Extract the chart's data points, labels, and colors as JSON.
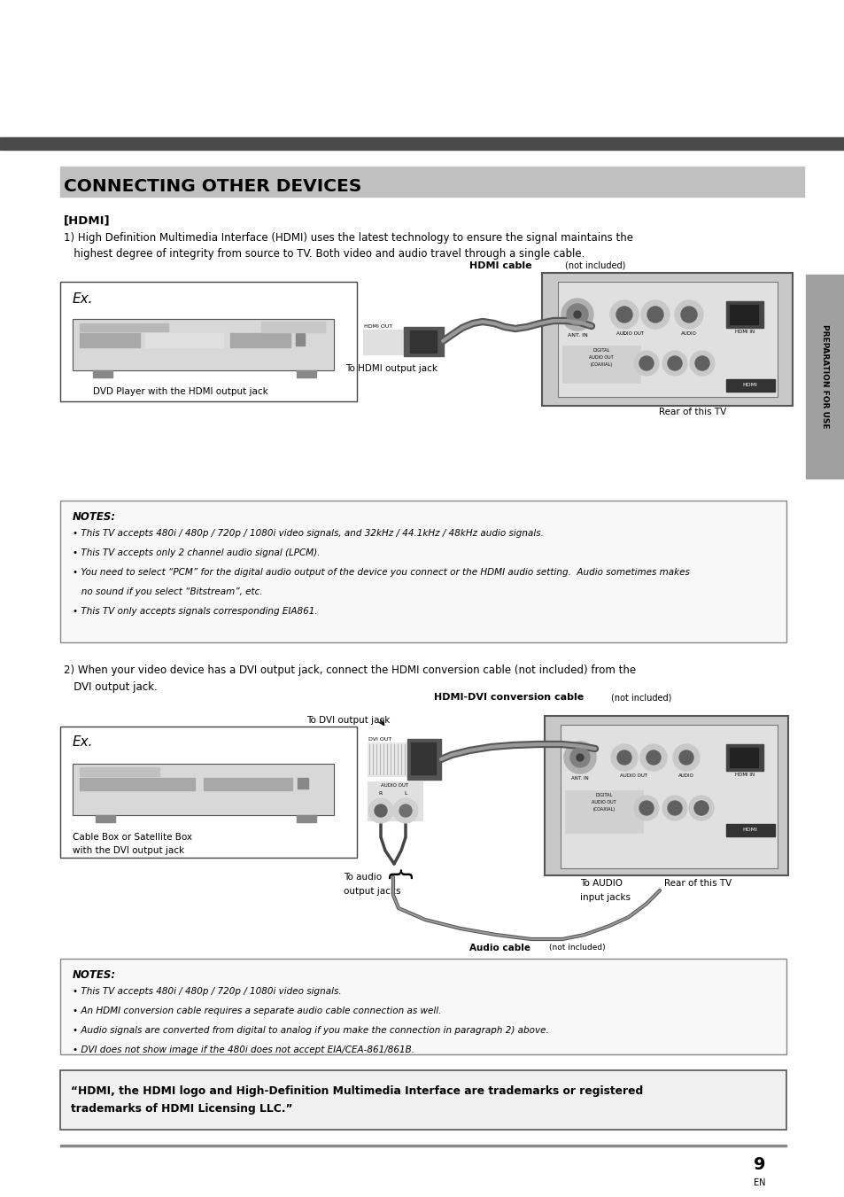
{
  "bg_color": "#ffffff",
  "page_width": 9.54,
  "page_height": 13.51,
  "header_bar_color": "#4a4a4a",
  "title_text": "CONNECTING OTHER DEVICES",
  "title_fontsize": 14,
  "section1_label": "[HDMI]",
  "section1_text1": "1) High Definition Multimedia Interface (HDMI) uses the latest technology to ensure the signal maintains the",
  "section1_text2": "   highest degree of integrity from source to TV. Both video and audio travel through a single cable.",
  "notes1_title": "NOTES:",
  "notes1_items": [
    "• This TV accepts 480i / 480p / 720p / 1080i video signals, and 32kHz / 44.1kHz / 48kHz audio signals.",
    "• This TV accepts only 2 channel audio signal (LPCM).",
    "• You need to select “PCM” for the digital audio output of the device you connect or the HDMI audio setting.  Audio sometimes makes",
    "   no sound if you select “Bitstream”, etc.",
    "• This TV only accepts signals corresponding EIA861."
  ],
  "section2_text1": "2) When your video device has a DVI output jack, connect the HDMI conversion cable (not included) from the",
  "section2_text2": "   DVI output jack.",
  "notes2_items": [
    "• This TV accepts 480i / 480p / 720p / 1080i video signals.",
    "• An HDMI conversion cable requires a separate audio cable connection as well.",
    "• Audio signals are converted from digital to analog if you make the connection in paragraph 2) above.",
    "• DVI does not show image if the 480i does not accept EIA/CEA-861/861B."
  ],
  "hdmi_notice_text": "“HDMI, the HDMI logo and High-Definition Multimedia Interface are trademarks or registered\ntrademarks of HDMI Licensing LLC.”",
  "page_number": "9",
  "side_tab_text": "PREPARATION FOR USE",
  "right_bar_color": "#808080"
}
